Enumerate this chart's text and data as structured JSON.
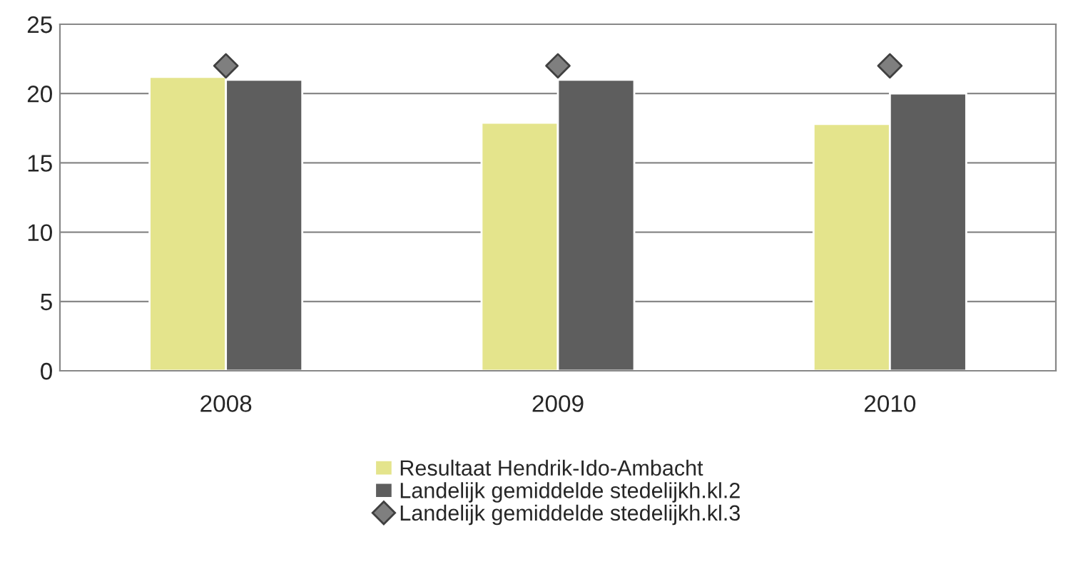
{
  "chart_data": {
    "type": "bar",
    "categories": [
      "2008",
      "2009",
      "2010"
    ],
    "series": [
      {
        "name": "Resultaat Hendrik-Ido-Ambacht",
        "color": "#e4e48c",
        "values": [
          21.2,
          17.9,
          17.8
        ]
      },
      {
        "name": "Landelijk gemiddelde stedelijkh.kl.2",
        "color": "#5e5e5e",
        "values": [
          21.0,
          21.0,
          20.0
        ]
      },
      {
        "name": "Landelijk gemiddelde stedelijkh.kl.3",
        "type": "scatter",
        "marker": "diamond",
        "color": "#7f7f7f",
        "values": [
          22,
          22,
          22
        ]
      }
    ],
    "ylim": [
      0,
      25
    ],
    "yticks": [
      0,
      5,
      10,
      15,
      20,
      25
    ],
    "grid": "y",
    "legend": "bottom"
  }
}
